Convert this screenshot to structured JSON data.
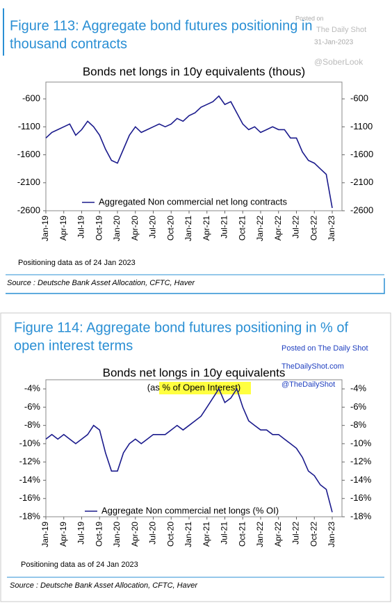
{
  "chart_data": [
    {
      "type": "line",
      "figure_title": [
        "Figure 113: Aggregate bond futures positioning in",
        "thousand contracts"
      ],
      "title": "Bonds net longs in 10y equivalents (thous)",
      "watermarks": [
        "Posted on",
        "The Daily Shot",
        "31-Jan-2023",
        "@SoberLook"
      ],
      "categories": [
        "Jan-19",
        null,
        null,
        "Apr-19",
        null,
        null,
        "Jul-19",
        null,
        null,
        "Oct-19",
        null,
        null,
        "Jan-20",
        null,
        null,
        "Apr-20",
        null,
        null,
        "Jul-20",
        null,
        null,
        "Oct-20",
        null,
        null,
        "Jan-21",
        null,
        null,
        "Apr-21",
        null,
        null,
        "Jul-21",
        null,
        null,
        "Oct-21",
        null,
        null,
        "Jan-22",
        null,
        null,
        "Apr-22",
        null,
        null,
        "Jul-22",
        null,
        null,
        "Oct-22",
        null,
        null,
        "Jan-23"
      ],
      "series": [
        {
          "name": "Aggregated Non commercial net long contracts",
          "color": "#1a1a8c",
          "values": [
            -1300,
            -1200,
            -1150,
            -1100,
            -1050,
            -1250,
            -1150,
            -1000,
            -1100,
            -1250,
            -1500,
            -1700,
            -1750,
            -1500,
            -1250,
            -1100,
            -1200,
            -1150,
            -1100,
            -1050,
            -1100,
            -1050,
            -950,
            -1000,
            -900,
            -850,
            -750,
            -700,
            -650,
            -550,
            -700,
            -650,
            -850,
            -1050,
            -1150,
            -1100,
            -1200,
            -1150,
            -1100,
            -1150,
            -1150,
            -1300,
            -1300,
            -1550,
            -1700,
            -1750,
            -1850,
            -1950,
            -2550
          ]
        }
      ],
      "ylim": [
        -2600,
        -300
      ],
      "yticks": [
        -600,
        -1100,
        -1600,
        -2100,
        -2600
      ],
      "legend": "lower center",
      "note": "Positioning data as of 24 Jan 2023",
      "source": "Source : Deutsche Bank Asset Allocation, CFTC, Haver"
    },
    {
      "type": "line",
      "figure_title": [
        "Figure 114: Aggregate bond futures positioning in % of",
        "open interest terms"
      ],
      "title": "Bonds net longs in 10y equivalents",
      "subtitle": "(as % of Open Interest)",
      "watermarks": [
        "Posted on The Daily Shot",
        "TheDailyShot.com",
        "@TheDailyShot"
      ],
      "categories": [
        "Jan-19",
        null,
        null,
        "Apr-19",
        null,
        null,
        "Jul-19",
        null,
        null,
        "Oct-19",
        null,
        null,
        "Jan-20",
        null,
        null,
        "Apr-20",
        null,
        null,
        "Jul-20",
        null,
        null,
        "Oct-20",
        null,
        null,
        "Jan-21",
        null,
        null,
        "Apr-21",
        null,
        null,
        "Jul-21",
        null,
        null,
        "Oct-21",
        null,
        null,
        "Jan-22",
        null,
        null,
        "Apr-22",
        null,
        null,
        "Jul-22",
        null,
        null,
        "Oct-22",
        null,
        null,
        "Jan-23"
      ],
      "series": [
        {
          "name": "Aggregate Non commercial net longs (% OI)",
          "color": "#1a1a8c",
          "values": [
            -9.5,
            -9,
            -9.5,
            -9,
            -9.5,
            -10,
            -9.5,
            -9,
            -8,
            -8.5,
            -11,
            -13,
            -13,
            -11,
            -10,
            -9.5,
            -10,
            -9.5,
            -9,
            -9,
            -9,
            -8.5,
            -8,
            -8.5,
            -8,
            -7.5,
            -7,
            -6,
            -5,
            -4,
            -5.5,
            -5,
            -4,
            -6,
            -7.5,
            -8,
            -8.5,
            -8.5,
            -9,
            -9,
            -9.5,
            -10,
            -10.5,
            -11.5,
            -13,
            -13.5,
            -14.5,
            -15,
            -17.5
          ]
        }
      ],
      "ylim": [
        -18,
        -3
      ],
      "yticks": [
        {
          "value": -4,
          "label": "-4%"
        },
        {
          "value": -6,
          "label": "-6%"
        },
        {
          "value": -8,
          "label": "-8%"
        },
        {
          "value": -10,
          "label": "-10%"
        },
        {
          "value": -12,
          "label": "-12%"
        },
        {
          "value": -14,
          "label": "-14%"
        },
        {
          "value": -16,
          "label": "-16%"
        },
        {
          "value": -18,
          "label": "-18%"
        }
      ],
      "legend": "lower center",
      "note": "Positioning data as of 24 Jan 2023",
      "source": "Source : Deutsche Bank Asset Allocation, CFTC, Haver"
    }
  ]
}
